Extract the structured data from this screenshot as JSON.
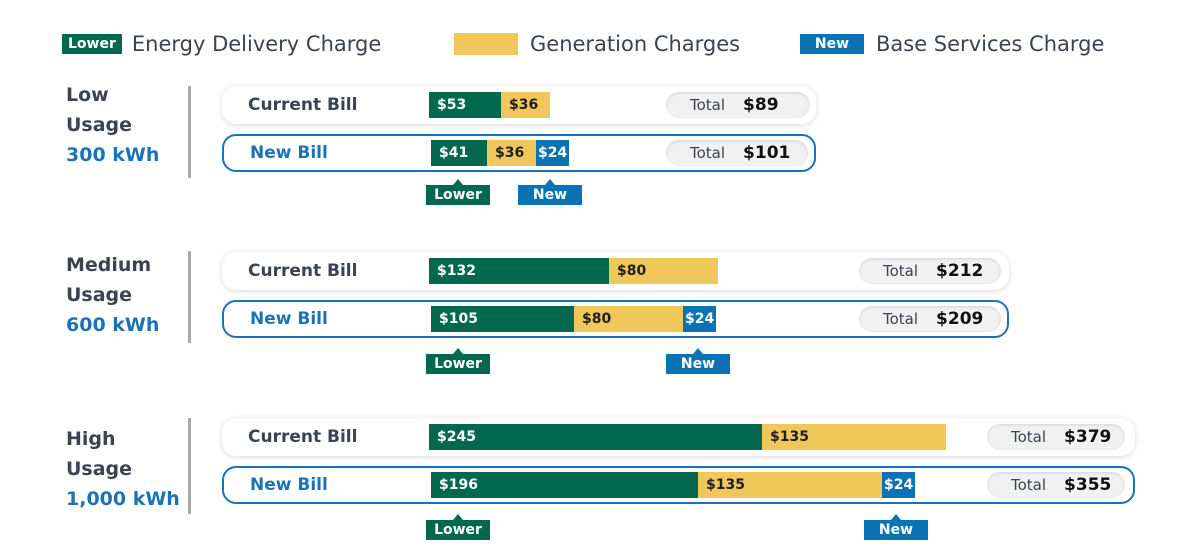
{
  "legend": {
    "delivery": {
      "badge": "Lower",
      "label": "Energy Delivery Charge"
    },
    "generation": {
      "label": "Generation Charges"
    },
    "base": {
      "badge": "New",
      "label": "Base Services Charge"
    }
  },
  "colors": {
    "delivery": "#04684f",
    "generation": "#f0c75a",
    "base": "#0b73b3",
    "accent_text": "#1a73b7"
  },
  "total_label": "Total",
  "callouts": {
    "lower": "Lower",
    "new": "New"
  },
  "chart_data": {
    "type": "bar",
    "orientation": "horizontal",
    "stacked": true,
    "groups": [
      {
        "name_line1": "Low",
        "name_line2": "Usage",
        "usage": "300 kWh",
        "bills": [
          {
            "label": "Current Bill",
            "delivery": 53,
            "generation": 36,
            "base": null,
            "total": 89,
            "delivery_text": "$53",
            "generation_text": "$36",
            "base_text": "",
            "total_text": "$89"
          },
          {
            "label": "New Bill",
            "delivery": 41,
            "generation": 36,
            "base": 24,
            "total": 101,
            "delivery_text": "$41",
            "generation_text": "$36",
            "base_text": "$24",
            "total_text": "$101"
          }
        ]
      },
      {
        "name_line1": "Medium",
        "name_line2": "Usage",
        "usage": "600 kWh",
        "bills": [
          {
            "label": "Current Bill",
            "delivery": 132,
            "generation": 80,
            "base": null,
            "total": 212,
            "delivery_text": "$132",
            "generation_text": "$80",
            "base_text": "",
            "total_text": "$212"
          },
          {
            "label": "New Bill",
            "delivery": 105,
            "generation": 80,
            "base": 24,
            "total": 209,
            "delivery_text": "$105",
            "generation_text": "$80",
            "base_text": "$24",
            "total_text": "$209"
          }
        ]
      },
      {
        "name_line1": "High",
        "name_line2": "Usage",
        "usage": "1,000 kWh",
        "bills": [
          {
            "label": "Current Bill",
            "delivery": 245,
            "generation": 135,
            "base": null,
            "total": 379,
            "delivery_text": "$245",
            "generation_text": "$135",
            "base_text": "",
            "total_text": "$379"
          },
          {
            "label": "New Bill",
            "delivery": 196,
            "generation": 135,
            "base": 24,
            "total": 355,
            "delivery_text": "$196",
            "generation_text": "$135",
            "base_text": "$24",
            "total_text": "$355"
          }
        ]
      }
    ]
  }
}
